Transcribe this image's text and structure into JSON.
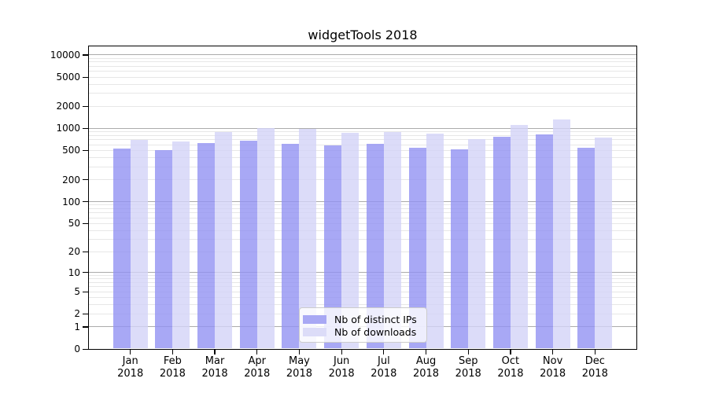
{
  "title": "widgetTools 2018",
  "chart_data": {
    "type": "bar",
    "title": "widgetTools 2018",
    "categories": [
      "Jan 2018",
      "Feb 2018",
      "Mar 2018",
      "Apr 2018",
      "May 2018",
      "Jun 2018",
      "Jul 2018",
      "Aug 2018",
      "Sep 2018",
      "Oct 2018",
      "Nov 2018",
      "Dec 2018"
    ],
    "series": [
      {
        "name": "Nb of distinct IPs",
        "values": [
          533,
          512,
          639,
          682,
          618,
          593,
          618,
          551,
          521,
          767,
          837,
          551
        ]
      },
      {
        "name": "Nb of downloads",
        "values": [
          699,
          671,
          895,
          1019,
          988,
          867,
          888,
          845,
          712,
          1117,
          1337,
          753
        ]
      }
    ],
    "y_ticks": [
      0,
      1,
      2,
      5,
      10,
      20,
      50,
      100,
      200,
      500,
      1000,
      2000,
      5000,
      10000
    ],
    "y_scale": "log1p",
    "y_max": 13400,
    "xlabel": "",
    "ylabel": "",
    "grid": true,
    "legend_position": "lower center"
  },
  "colors": {
    "ip_bar_fill": "rgba(146,146,243,0.8)",
    "dl_bar_fill": "rgba(211,211,247,0.8)",
    "ip_swatch": "#a8a8f4",
    "dl_swatch": "#dcdcf8",
    "grid_minor": "#e7e7e7",
    "grid_major": "#ababab",
    "axis": "#000000",
    "background": "#ffffff"
  }
}
